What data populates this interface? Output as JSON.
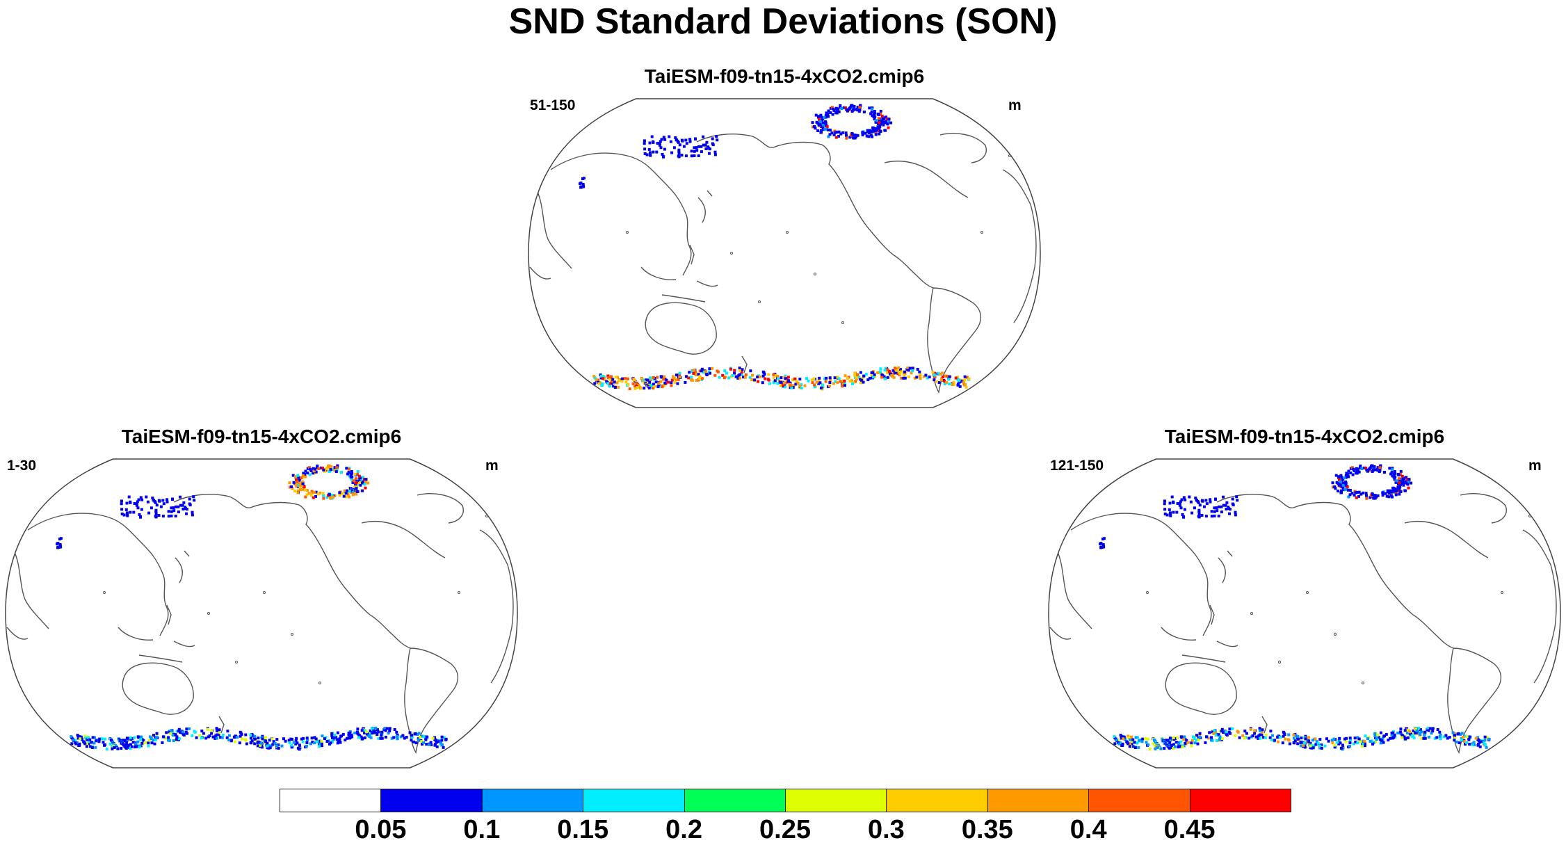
{
  "title": "SND Standard Deviations (SON)",
  "panels": [
    {
      "id": "top",
      "title": "TaiESM-f09-tn15-4xCO2.cmip6",
      "left_label": "51-150",
      "right_label": "m"
    },
    {
      "id": "bottom-left",
      "title": "TaiESM-f09-tn15-4xCO2.cmip6",
      "left_label": "1-30",
      "right_label": "m"
    },
    {
      "id": "bottom-right",
      "title": "TaiESM-f09-tn15-4xCO2.cmip6",
      "left_label": "121-150",
      "right_label": "m"
    }
  ],
  "colorbar": {
    "labels": [
      "0.05",
      "0.1",
      "0.15",
      "0.2",
      "0.25",
      "0.3",
      "0.35",
      "0.4",
      "0.45"
    ],
    "colors": [
      "#ffffff",
      "#0000ee",
      "#0096ff",
      "#00eeff",
      "#00ff55",
      "#ddff00",
      "#ffcc00",
      "#ff9900",
      "#ff5500",
      "#ff0000"
    ]
  }
}
